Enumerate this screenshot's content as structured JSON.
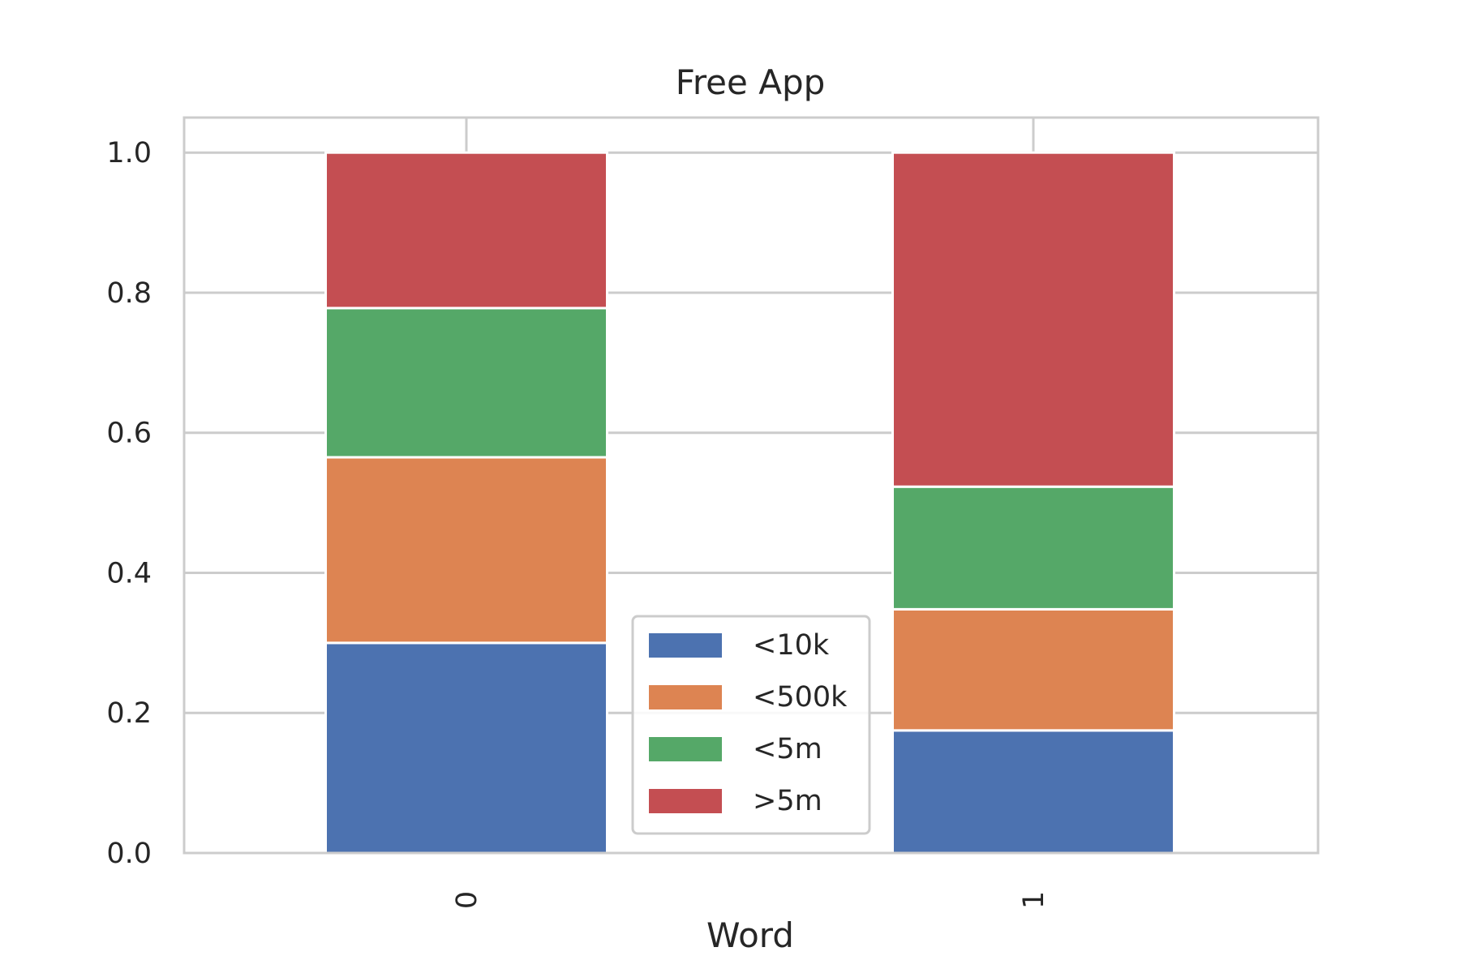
{
  "chart_data": {
    "type": "bar",
    "stacked": true,
    "title": "Free App",
    "xlabel": "Word",
    "ylabel": "",
    "categories": [
      "0",
      "1"
    ],
    "ylim": [
      0,
      1.05
    ],
    "yticks": [
      "0.0",
      "0.2",
      "0.4",
      "0.6",
      "0.8",
      "1.0"
    ],
    "series": [
      {
        "name": "<10k",
        "color": "#4c72b0",
        "values": [
          0.3,
          0.175
        ]
      },
      {
        "name": "<500k",
        "color": "#dd8452",
        "values": [
          0.265,
          0.173
        ]
      },
      {
        "name": "<5m",
        "color": "#55a868",
        "values": [
          0.213,
          0.175
        ]
      },
      {
        "name": ">5m",
        "color": "#c44e52",
        "values": [
          0.222,
          0.477
        ]
      }
    ],
    "grid": true,
    "legend_position": "lower-center"
  }
}
